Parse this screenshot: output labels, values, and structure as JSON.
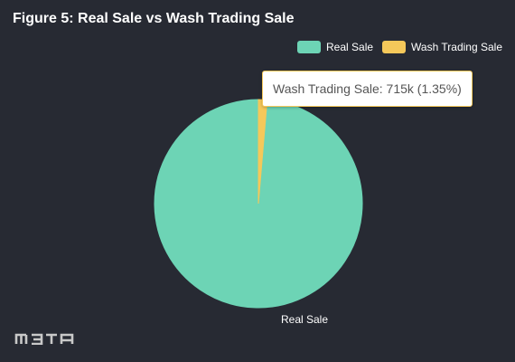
{
  "chart_data": {
    "type": "pie",
    "title": "Figure 5: Real Sale vs Wash Trading Sale",
    "legend_position": "top-right",
    "series": [
      {
        "name": "Real Sale",
        "percent": 98.65,
        "color": "#6dd4b5"
      },
      {
        "name": "Wash Trading Sale",
        "value_label": "715k",
        "percent": 1.35,
        "color": "#f5c85a"
      }
    ],
    "slice_labels": [
      {
        "series": "Real Sale",
        "text": "Real Sale"
      }
    ]
  },
  "tooltip": {
    "text": "Wash Trading Sale: 715k (1.35%)"
  },
  "logo": {
    "text": "META",
    "color": "#c8c8c8"
  }
}
